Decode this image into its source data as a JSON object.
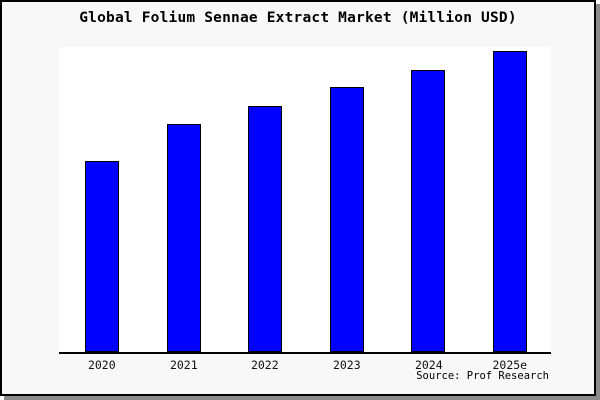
{
  "title": "Global Folium Sennae Extract Market (Million USD)",
  "source_label": "Source: Prof Research",
  "colors": {
    "bar_fill": "#0000ff",
    "bar_border": "#000000",
    "figure_background": "#f8f8f8",
    "plot_background": "#ffffff",
    "frame_border": "#000000",
    "shadow": "#8c8c8c"
  },
  "chart_data": {
    "type": "bar",
    "title": "Global Folium Sennae Extract Market (Million USD)",
    "categories": [
      "2020",
      "2021",
      "2022",
      "2023",
      "2024",
      "2025e"
    ],
    "values": [
      191,
      228,
      246,
      265,
      282,
      301
    ],
    "values_note": "No y-axis scale is shown in the image; values are relative bar heights (pixels above baseline)",
    "xlabel": "",
    "ylabel": "",
    "y_axis_visible": false,
    "grid": false,
    "legend": false,
    "bar_color": "#0000ff",
    "source": "Source: Prof Research"
  }
}
